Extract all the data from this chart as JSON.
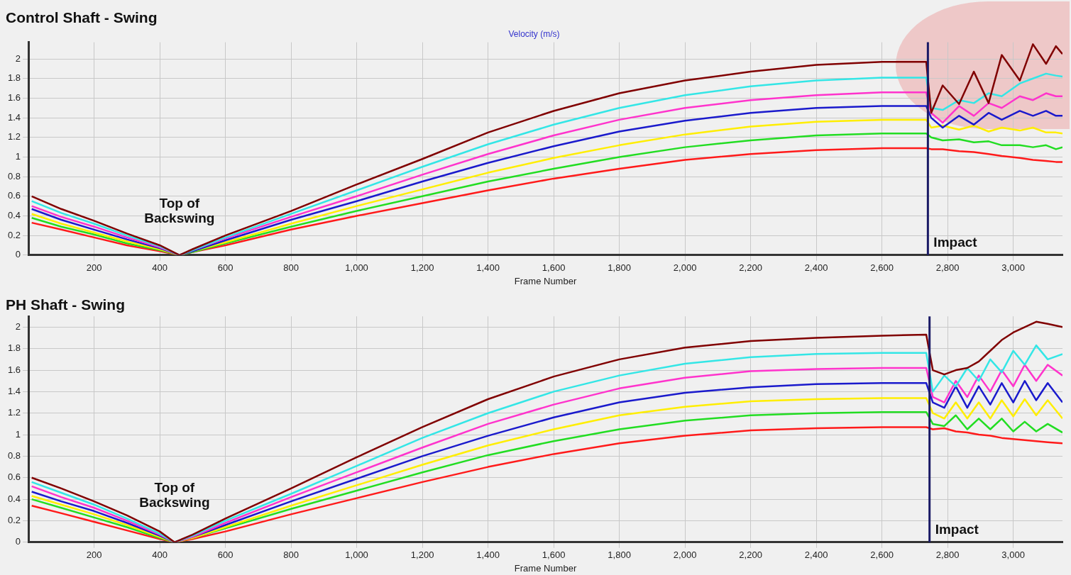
{
  "chart_data": [
    {
      "type": "line",
      "title": "Control Shaft - Swing",
      "subtitle": "Velocity (m/s)",
      "xlabel": "Frame Number",
      "grid": true,
      "x": [
        10,
        100,
        200,
        300,
        400,
        460,
        500,
        600,
        800,
        1000,
        1200,
        1400,
        1600,
        1800,
        2000,
        2200,
        2400,
        2600,
        2735,
        2750,
        2785,
        2835,
        2880,
        2925,
        2965,
        3020,
        3060,
        3100,
        3130,
        3150
      ],
      "xlim": [
        0,
        3150
      ],
      "xticks": [
        200,
        400,
        600,
        800,
        {
          "value": 1000,
          "label": "1,000"
        },
        {
          "value": 1200,
          "label": "1,200"
        },
        {
          "value": 1400,
          "label": "1,400"
        },
        {
          "value": 1600,
          "label": "1,600"
        },
        {
          "value": 1800,
          "label": "1,800"
        },
        {
          "value": 2000,
          "label": "2,000"
        },
        {
          "value": 2200,
          "label": "2,200"
        },
        {
          "value": 2400,
          "label": "2,400"
        },
        {
          "value": 2600,
          "label": "2,600"
        },
        {
          "value": 2800,
          "label": "2,800"
        },
        {
          "value": 3000,
          "label": "3,000"
        }
      ],
      "ylim": [
        0,
        2.17
      ],
      "yticks": [
        0,
        0.2,
        0.4,
        0.6,
        0.8,
        1,
        1.2,
        1.4,
        1.6,
        1.8,
        2
      ],
      "series": [
        {
          "color": "#800000",
          "values": [
            0.6,
            0.47,
            0.35,
            0.22,
            0.1,
            0.0,
            0.06,
            0.2,
            0.45,
            0.72,
            0.98,
            1.25,
            1.47,
            1.65,
            1.78,
            1.87,
            1.94,
            1.97,
            1.97,
            1.45,
            1.73,
            1.54,
            1.87,
            1.55,
            2.04,
            1.78,
            2.15,
            1.95,
            2.13,
            2.05
          ]
        },
        {
          "color": "#33e6e6",
          "values": [
            0.55,
            0.43,
            0.32,
            0.2,
            0.09,
            0.0,
            0.05,
            0.18,
            0.42,
            0.66,
            0.9,
            1.13,
            1.33,
            1.5,
            1.63,
            1.72,
            1.78,
            1.81,
            1.81,
            1.5,
            1.48,
            1.58,
            1.55,
            1.65,
            1.62,
            1.75,
            1.8,
            1.85,
            1.83,
            1.82
          ]
        },
        {
          "color": "#ff33cc",
          "values": [
            0.5,
            0.39,
            0.29,
            0.18,
            0.08,
            0,
            0.05,
            0.17,
            0.39,
            0.6,
            0.82,
            1.03,
            1.22,
            1.38,
            1.5,
            1.58,
            1.63,
            1.66,
            1.66,
            1.45,
            1.35,
            1.52,
            1.42,
            1.55,
            1.5,
            1.62,
            1.58,
            1.65,
            1.62,
            1.62
          ]
        },
        {
          "color": "#1a1acc",
          "values": [
            0.47,
            0.36,
            0.26,
            0.16,
            0.07,
            0,
            0.04,
            0.15,
            0.36,
            0.55,
            0.75,
            0.94,
            1.11,
            1.26,
            1.37,
            1.45,
            1.5,
            1.52,
            1.52,
            1.4,
            1.3,
            1.42,
            1.33,
            1.45,
            1.38,
            1.47,
            1.42,
            1.47,
            1.42,
            1.42
          ]
        },
        {
          "color": "#ffee00",
          "values": [
            0.42,
            0.32,
            0.23,
            0.14,
            0.06,
            0,
            0.04,
            0.13,
            0.32,
            0.5,
            0.67,
            0.84,
            0.99,
            1.12,
            1.23,
            1.31,
            1.36,
            1.38,
            1.38,
            1.3,
            1.32,
            1.28,
            1.32,
            1.26,
            1.3,
            1.27,
            1.3,
            1.25,
            1.25,
            1.24
          ]
        },
        {
          "color": "#22dd22",
          "values": [
            0.38,
            0.29,
            0.21,
            0.12,
            0.05,
            0,
            0.03,
            0.12,
            0.29,
            0.45,
            0.6,
            0.75,
            0.88,
            1.0,
            1.1,
            1.17,
            1.22,
            1.24,
            1.24,
            1.2,
            1.17,
            1.18,
            1.15,
            1.16,
            1.12,
            1.12,
            1.1,
            1.12,
            1.08,
            1.1
          ]
        },
        {
          "color": "#ff1a1a",
          "values": [
            0.33,
            0.26,
            0.18,
            0.1,
            0.04,
            0,
            0.03,
            0.1,
            0.26,
            0.4,
            0.53,
            0.66,
            0.78,
            0.88,
            0.97,
            1.03,
            1.07,
            1.09,
            1.09,
            1.08,
            1.08,
            1.06,
            1.05,
            1.03,
            1.01,
            0.99,
            0.97,
            0.96,
            0.95,
            0.95
          ]
        }
      ],
      "ref_lines": [
        {
          "axis": "x",
          "value": 2740,
          "label": "Impact",
          "color": "#1a1a66"
        }
      ],
      "annotations": [
        "Top of\nBackswing"
      ]
    },
    {
      "type": "line",
      "title": "PH Shaft - Swing",
      "xlabel": "Frame Number",
      "grid": true,
      "x": [
        10,
        100,
        200,
        300,
        400,
        445,
        500,
        600,
        800,
        1000,
        1200,
        1400,
        1600,
        1800,
        2000,
        2200,
        2400,
        2600,
        2735,
        2755,
        2790,
        2825,
        2860,
        2895,
        2930,
        2965,
        3000,
        3035,
        3070,
        3105,
        3150
      ],
      "xlim": [
        0,
        3150
      ],
      "xticks": [
        200,
        400,
        600,
        800,
        {
          "value": 1000,
          "label": "1,000"
        },
        {
          "value": 1200,
          "label": "1,200"
        },
        {
          "value": 1400,
          "label": "1,400"
        },
        {
          "value": 1600,
          "label": "1,600"
        },
        {
          "value": 1800,
          "label": "1,800"
        },
        {
          "value": 2000,
          "label": "2,000"
        },
        {
          "value": 2200,
          "label": "2,200"
        },
        {
          "value": 2400,
          "label": "2,400"
        },
        {
          "value": 2600,
          "label": "2,600"
        },
        {
          "value": 2800,
          "label": "2,800"
        },
        {
          "value": 3000,
          "label": "3,000"
        }
      ],
      "ylim": [
        0,
        2.1
      ],
      "yticks": [
        0,
        0.2,
        0.4,
        0.6,
        0.8,
        1,
        1.2,
        1.4,
        1.6,
        1.8,
        2
      ],
      "series": [
        {
          "color": "#800000",
          "values": [
            0.6,
            0.5,
            0.38,
            0.25,
            0.1,
            0.0,
            0.07,
            0.22,
            0.5,
            0.79,
            1.07,
            1.33,
            1.54,
            1.7,
            1.81,
            1.87,
            1.9,
            1.92,
            1.93,
            1.6,
            1.56,
            1.6,
            1.62,
            1.68,
            1.78,
            1.88,
            1.95,
            2.0,
            2.05,
            2.03,
            2.0
          ]
        },
        {
          "color": "#33e6e6",
          "values": [
            0.56,
            0.46,
            0.35,
            0.22,
            0.08,
            0,
            0.06,
            0.2,
            0.45,
            0.71,
            0.97,
            1.2,
            1.4,
            1.55,
            1.66,
            1.72,
            1.75,
            1.76,
            1.76,
            1.4,
            1.55,
            1.45,
            1.62,
            1.5,
            1.7,
            1.58,
            1.78,
            1.65,
            1.83,
            1.7,
            1.75
          ]
        },
        {
          "color": "#ff33cc",
          "values": [
            0.52,
            0.42,
            0.32,
            0.2,
            0.07,
            0,
            0.05,
            0.18,
            0.42,
            0.65,
            0.88,
            1.1,
            1.28,
            1.43,
            1.53,
            1.59,
            1.61,
            1.62,
            1.62,
            1.35,
            1.3,
            1.5,
            1.35,
            1.55,
            1.4,
            1.6,
            1.45,
            1.65,
            1.5,
            1.65,
            1.55
          ]
        },
        {
          "color": "#1a1acc",
          "values": [
            0.47,
            0.38,
            0.29,
            0.18,
            0.06,
            0,
            0.05,
            0.16,
            0.38,
            0.59,
            0.8,
            0.99,
            1.16,
            1.3,
            1.39,
            1.44,
            1.47,
            1.48,
            1.48,
            1.3,
            1.25,
            1.45,
            1.25,
            1.45,
            1.28,
            1.48,
            1.3,
            1.5,
            1.32,
            1.48,
            1.3
          ]
        },
        {
          "color": "#ffee00",
          "values": [
            0.43,
            0.35,
            0.26,
            0.16,
            0.05,
            0,
            0.04,
            0.14,
            0.34,
            0.53,
            0.72,
            0.9,
            1.05,
            1.18,
            1.26,
            1.31,
            1.33,
            1.34,
            1.34,
            1.2,
            1.15,
            1.3,
            1.15,
            1.3,
            1.15,
            1.32,
            1.17,
            1.33,
            1.18,
            1.32,
            1.15
          ]
        },
        {
          "color": "#22dd22",
          "values": [
            0.4,
            0.32,
            0.23,
            0.14,
            0.04,
            0,
            0.04,
            0.13,
            0.31,
            0.48,
            0.65,
            0.81,
            0.94,
            1.05,
            1.13,
            1.18,
            1.2,
            1.21,
            1.21,
            1.1,
            1.08,
            1.18,
            1.05,
            1.15,
            1.05,
            1.15,
            1.03,
            1.12,
            1.03,
            1.1,
            1.02
          ]
        },
        {
          "color": "#ff1a1a",
          "values": [
            0.34,
            0.27,
            0.19,
            0.11,
            0.03,
            0,
            0.03,
            0.1,
            0.26,
            0.41,
            0.56,
            0.7,
            0.82,
            0.92,
            0.99,
            1.04,
            1.06,
            1.07,
            1.07,
            1.05,
            1.06,
            1.03,
            1.02,
            1.0,
            0.99,
            0.97,
            0.96,
            0.95,
            0.94,
            0.93,
            0.92
          ]
        }
      ],
      "ref_lines": [
        {
          "axis": "x",
          "value": 2745,
          "label": "Impact",
          "color": "#1a1a66"
        }
      ],
      "annotations": [
        "Top of\nBackswing"
      ]
    }
  ]
}
